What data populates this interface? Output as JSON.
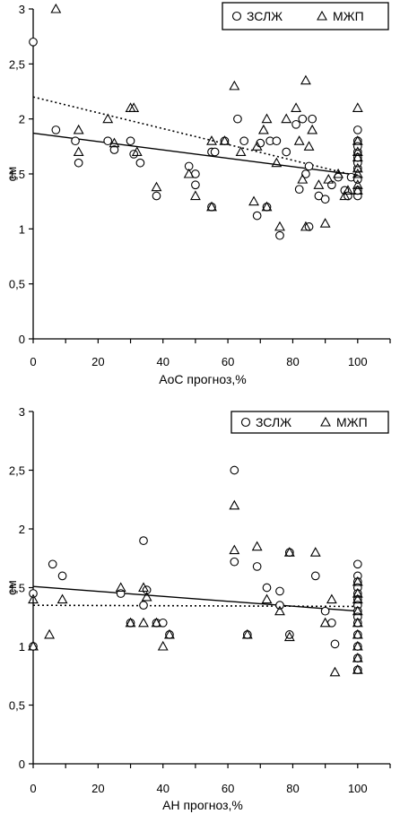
{
  "chart_data": [
    {
      "type": "scatter",
      "xlabel": "АоС прогноз,%",
      "ylabel": "см",
      "xlim": [
        0,
        110
      ],
      "ylim": [
        0,
        3
      ],
      "xticks": [
        "0",
        "20",
        "40",
        "60",
        "80",
        "100"
      ],
      "yticks": [
        "0",
        "0,5",
        "1",
        "1,5",
        "2",
        "2,5",
        "3"
      ],
      "legend": "top-right",
      "series": [
        {
          "name": "ЗСЛЖ",
          "marker": "circle",
          "points": [
            [
              0,
              2.7
            ],
            [
              7,
              1.9
            ],
            [
              13,
              1.8
            ],
            [
              14,
              1.6
            ],
            [
              23,
              1.8
            ],
            [
              25,
              1.72
            ],
            [
              30,
              1.8
            ],
            [
              31,
              1.68
            ],
            [
              33,
              1.6
            ],
            [
              38,
              1.3
            ],
            [
              48,
              1.57
            ],
            [
              50,
              1.5
            ],
            [
              50,
              1.4
            ],
            [
              55,
              1.2
            ],
            [
              55,
              1.7
            ],
            [
              56,
              1.7
            ],
            [
              59,
              1.8
            ],
            [
              63,
              2.0
            ],
            [
              65,
              1.8
            ],
            [
              69,
              1.12
            ],
            [
              70,
              1.78
            ],
            [
              72,
              1.2
            ],
            [
              73,
              1.8
            ],
            [
              75,
              1.8
            ],
            [
              76,
              0.94
            ],
            [
              78,
              1.7
            ],
            [
              81,
              1.95
            ],
            [
              82,
              1.36
            ],
            [
              83,
              2.0
            ],
            [
              84,
              1.5
            ],
            [
              85,
              1.02
            ],
            [
              85,
              1.57
            ],
            [
              86,
              2.0
            ],
            [
              88,
              1.3
            ],
            [
              90,
              1.27
            ],
            [
              92,
              1.4
            ],
            [
              94,
              1.47
            ],
            [
              96,
              1.35
            ],
            [
              97,
              1.3
            ],
            [
              98,
              1.47
            ],
            [
              100,
              1.3
            ],
            [
              100,
              1.35
            ],
            [
              100,
              1.45
            ],
            [
              100,
              1.55
            ],
            [
              100,
              1.6
            ],
            [
              100,
              1.7
            ],
            [
              100,
              1.8
            ],
            [
              100,
              1.9
            ],
            [
              100,
              1.75
            ],
            [
              100,
              1.65
            ]
          ]
        },
        {
          "name": "МЖП",
          "marker": "triangle",
          "points": [
            [
              7,
              3.0
            ],
            [
              14,
              1.9
            ],
            [
              14,
              1.7
            ],
            [
              23,
              2.0
            ],
            [
              25,
              1.78
            ],
            [
              30,
              2.1
            ],
            [
              31,
              2.1
            ],
            [
              32,
              1.7
            ],
            [
              38,
              1.38
            ],
            [
              48,
              1.5
            ],
            [
              50,
              1.3
            ],
            [
              55,
              1.2
            ],
            [
              55,
              1.8
            ],
            [
              59,
              1.8
            ],
            [
              62,
              2.3
            ],
            [
              64,
              1.7
            ],
            [
              68,
              1.25
            ],
            [
              69,
              1.75
            ],
            [
              71,
              1.9
            ],
            [
              72,
              2.0
            ],
            [
              72,
              1.2
            ],
            [
              75,
              1.6
            ],
            [
              76,
              1.02
            ],
            [
              78,
              2.0
            ],
            [
              81,
              2.1
            ],
            [
              82,
              1.8
            ],
            [
              83,
              1.45
            ],
            [
              84,
              2.35
            ],
            [
              84,
              1.02
            ],
            [
              85,
              1.75
            ],
            [
              86,
              1.9
            ],
            [
              88,
              1.4
            ],
            [
              90,
              1.05
            ],
            [
              91,
              1.45
            ],
            [
              94,
              1.5
            ],
            [
              96,
              1.3
            ],
            [
              97,
              1.35
            ],
            [
              100,
              2.1
            ],
            [
              100,
              1.8
            ],
            [
              100,
              1.7
            ],
            [
              100,
              1.55
            ],
            [
              100,
              1.4
            ],
            [
              100,
              1.35
            ],
            [
              100,
              1.5
            ],
            [
              100,
              1.65
            ]
          ]
        }
      ],
      "trendlines": [
        {
          "series": "ЗСЛЖ",
          "style": "solid",
          "x": [
            0,
            100
          ],
          "y": [
            1.87,
            1.49
          ]
        },
        {
          "series": "МЖП",
          "style": "dotted",
          "x": [
            0,
            100
          ],
          "y": [
            2.2,
            1.48
          ]
        }
      ]
    },
    {
      "type": "scatter",
      "xlabel": "АН прогноз,%",
      "ylabel": "см",
      "xlim": [
        0,
        110
      ],
      "ylim": [
        0,
        3
      ],
      "xticks": [
        "0",
        "20",
        "40",
        "60",
        "80",
        "100"
      ],
      "yticks": [
        "0",
        "0,5",
        "1",
        "1,5",
        "2",
        "2,5",
        "3"
      ],
      "legend": "top-right",
      "series": [
        {
          "name": "ЗСЛЖ",
          "marker": "circle",
          "points": [
            [
              0,
              1.45
            ],
            [
              0,
              1.0
            ],
            [
              6,
              1.7
            ],
            [
              9,
              1.6
            ],
            [
              27,
              1.45
            ],
            [
              30,
              1.2
            ],
            [
              34,
              1.9
            ],
            [
              34,
              1.35
            ],
            [
              35,
              1.48
            ],
            [
              38,
              1.2
            ],
            [
              40,
              1.2
            ],
            [
              42,
              1.1
            ],
            [
              62,
              2.5
            ],
            [
              62,
              1.72
            ],
            [
              66,
              1.1
            ],
            [
              69,
              1.68
            ],
            [
              72,
              1.5
            ],
            [
              76,
              1.47
            ],
            [
              76,
              1.35
            ],
            [
              79,
              1.8
            ],
            [
              79,
              1.1
            ],
            [
              87,
              1.6
            ],
            [
              90,
              1.3
            ],
            [
              92,
              1.2
            ],
            [
              93,
              1.02
            ],
            [
              100,
              1.7
            ],
            [
              100,
              1.6
            ],
            [
              100,
              1.55
            ],
            [
              100,
              1.5
            ],
            [
              100,
              1.45
            ],
            [
              100,
              1.4
            ],
            [
              100,
              1.35
            ],
            [
              100,
              1.3
            ],
            [
              100,
              1.25
            ],
            [
              100,
              1.2
            ],
            [
              100,
              1.1
            ],
            [
              100,
              1.0
            ],
            [
              100,
              0.9
            ],
            [
              100,
              0.8
            ]
          ]
        },
        {
          "name": "МЖП",
          "marker": "triangle",
          "points": [
            [
              0,
              1.4
            ],
            [
              0,
              1.0
            ],
            [
              5,
              1.1
            ],
            [
              9,
              1.4
            ],
            [
              27,
              1.5
            ],
            [
              30,
              1.2
            ],
            [
              34,
              1.5
            ],
            [
              34,
              1.2
            ],
            [
              35,
              1.42
            ],
            [
              38,
              1.2
            ],
            [
              40,
              1.0
            ],
            [
              42,
              1.1
            ],
            [
              62,
              2.2
            ],
            [
              62,
              1.82
            ],
            [
              66,
              1.1
            ],
            [
              69,
              1.85
            ],
            [
              72,
              1.4
            ],
            [
              76,
              1.3
            ],
            [
              79,
              1.8
            ],
            [
              79,
              1.08
            ],
            [
              87,
              1.8
            ],
            [
              90,
              1.2
            ],
            [
              92,
              1.4
            ],
            [
              93,
              0.78
            ],
            [
              100,
              1.55
            ],
            [
              100,
              1.45
            ],
            [
              100,
              1.4
            ],
            [
              100,
              1.3
            ],
            [
              100,
              1.2
            ],
            [
              100,
              1.1
            ],
            [
              100,
              1.0
            ],
            [
              100,
              0.9
            ],
            [
              100,
              0.8
            ]
          ]
        }
      ],
      "trendlines": [
        {
          "series": "ЗСЛЖ",
          "style": "solid",
          "x": [
            0,
            100
          ],
          "y": [
            1.51,
            1.3
          ]
        },
        {
          "series": "МЖП",
          "style": "dotted",
          "x": [
            0,
            100
          ],
          "y": [
            1.35,
            1.34
          ]
        }
      ]
    }
  ]
}
